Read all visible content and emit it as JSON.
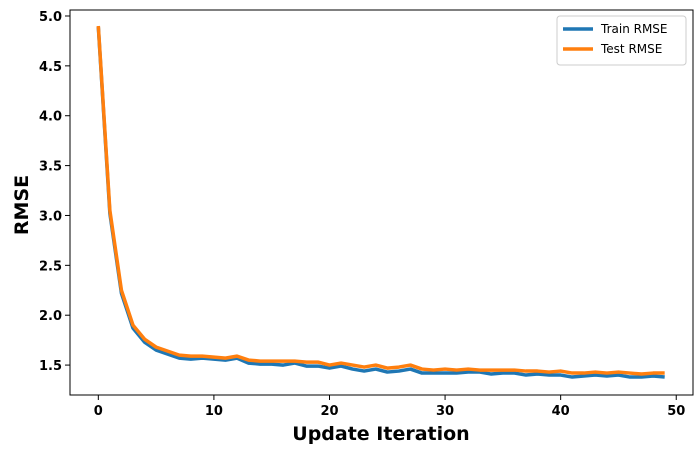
{
  "chart_data": {
    "type": "line",
    "title": "",
    "xlabel": "Update Iteration",
    "ylabel": "RMSE",
    "xlim": [
      -2.45,
      51.45
    ],
    "ylim": [
      1.2,
      5.06
    ],
    "xticks": [
      0,
      10,
      20,
      30,
      40,
      50
    ],
    "yticks": [
      1.5,
      2.0,
      2.5,
      3.0,
      3.5,
      4.0,
      4.5,
      5.0
    ],
    "xtick_labels": [
      "0",
      "10",
      "20",
      "30",
      "40",
      "50"
    ],
    "ytick_labels": [
      "1.5",
      "2.0",
      "2.5",
      "3.0",
      "3.5",
      "4.0",
      "4.5",
      "5.0"
    ],
    "grid": false,
    "legend_position": "top-right",
    "x": [
      0,
      1,
      2,
      3,
      4,
      5,
      6,
      7,
      8,
      9,
      10,
      11,
      12,
      13,
      14,
      15,
      16,
      17,
      18,
      19,
      20,
      21,
      22,
      23,
      24,
      25,
      26,
      27,
      28,
      29,
      30,
      31,
      32,
      33,
      34,
      35,
      36,
      37,
      38,
      39,
      40,
      41,
      42,
      43,
      44,
      45,
      46,
      47,
      48,
      49
    ],
    "series": [
      {
        "name": "Train RMSE",
        "color": "#1f77b4",
        "values": [
          4.89,
          3.02,
          2.22,
          1.87,
          1.73,
          1.65,
          1.61,
          1.57,
          1.56,
          1.57,
          1.56,
          1.55,
          1.57,
          1.52,
          1.51,
          1.51,
          1.5,
          1.52,
          1.49,
          1.49,
          1.47,
          1.49,
          1.46,
          1.44,
          1.46,
          1.43,
          1.44,
          1.46,
          1.42,
          1.42,
          1.42,
          1.42,
          1.43,
          1.43,
          1.41,
          1.42,
          1.42,
          1.4,
          1.41,
          1.4,
          1.4,
          1.38,
          1.39,
          1.4,
          1.39,
          1.4,
          1.38,
          1.38,
          1.39,
          1.38
        ]
      },
      {
        "name": "Test RMSE",
        "color": "#ff7f0e",
        "values": [
          4.9,
          3.05,
          2.25,
          1.9,
          1.76,
          1.68,
          1.64,
          1.6,
          1.59,
          1.59,
          1.58,
          1.57,
          1.59,
          1.55,
          1.54,
          1.54,
          1.54,
          1.54,
          1.53,
          1.53,
          1.5,
          1.52,
          1.5,
          1.48,
          1.5,
          1.47,
          1.48,
          1.5,
          1.46,
          1.45,
          1.46,
          1.45,
          1.46,
          1.45,
          1.45,
          1.45,
          1.45,
          1.44,
          1.44,
          1.43,
          1.44,
          1.42,
          1.42,
          1.43,
          1.42,
          1.43,
          1.42,
          1.41,
          1.42,
          1.42
        ]
      }
    ]
  }
}
